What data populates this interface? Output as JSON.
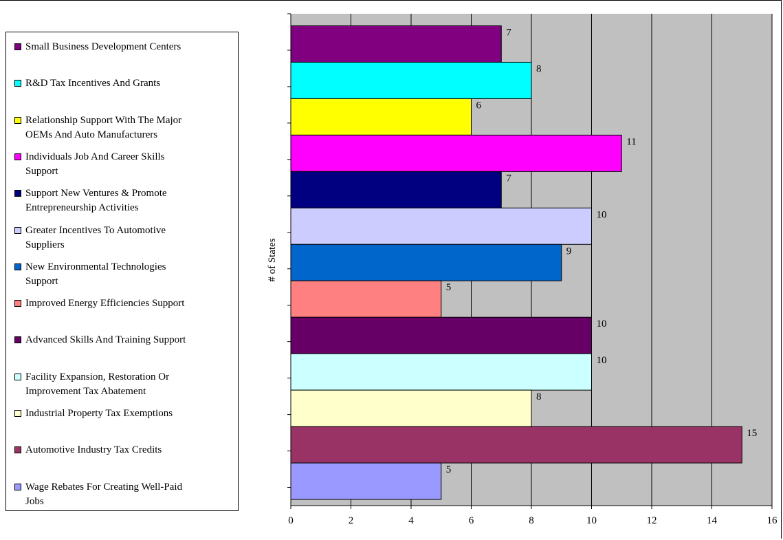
{
  "chart_data": {
    "type": "bar",
    "orientation": "horizontal",
    "title": "",
    "xlabel": "",
    "ylabel": "# of States",
    "xlim": [
      0,
      16
    ],
    "x_ticks": [
      0,
      2,
      4,
      6,
      8,
      10,
      12,
      14,
      16
    ],
    "grid": "vertical",
    "legend_position": "left",
    "plot_background": "#c0c0c0",
    "categories": [
      "Small Business Development Centers",
      "R&D Tax Incentives And Grants",
      "Relationship Support With The Major OEMs And Auto Manufacturers",
      "Individuals Job And Career Skills Support",
      "Support New Ventures & Promote Entrepreneurship Activities",
      "Greater Incentives To Automotive Suppliers",
      "New Environmental Technologies Support",
      "Improved Energy Efficiencies Support",
      "Advanced Skills And Training Support",
      "Facility Expansion, Restoration Or Improvement Tax Abatement",
      "Industrial Property Tax Exemptions",
      "Automotive Industry Tax Credits",
      "Wage Rebates For Creating Well-Paid Jobs"
    ],
    "values": [
      7,
      8,
      6,
      11,
      7,
      10,
      9,
      5,
      10,
      10,
      8,
      15,
      5
    ],
    "colors": [
      "#800080",
      "#00ffff",
      "#ffff00",
      "#ff00ff",
      "#000080",
      "#ccccff",
      "#0066cc",
      "#ff8080",
      "#660066",
      "#ccffff",
      "#ffffcc",
      "#993366",
      "#9999ff"
    ],
    "legend": [
      {
        "lines": [
          "Small Business Development Centers"
        ]
      },
      {
        "lines": [
          "R&D Tax Incentives And Grants"
        ]
      },
      {
        "lines": [
          "Relationship Support With The Major",
          "OEMs And Auto Manufacturers"
        ]
      },
      {
        "lines": [
          "Individuals Job And Career Skills",
          "Support"
        ]
      },
      {
        "lines": [
          "Support New Ventures & Promote",
          "Entrepreneurship Activities"
        ]
      },
      {
        "lines": [
          "Greater Incentives To Automotive",
          "Suppliers"
        ]
      },
      {
        "lines": [
          "New Environmental Technologies",
          "Support"
        ]
      },
      {
        "lines": [
          "Improved Energy Efficiencies Support"
        ]
      },
      {
        "lines": [
          "Advanced Skills And Training Support"
        ]
      },
      {
        "lines": [
          "Facility Expansion, Restoration Or",
          "Improvement Tax Abatement"
        ]
      },
      {
        "lines": [
          "Industrial Property Tax Exemptions"
        ]
      },
      {
        "lines": [
          "Automotive Industry Tax Credits"
        ]
      },
      {
        "lines": [
          "Wage Rebates For Creating Well-Paid",
          "Jobs"
        ]
      }
    ]
  }
}
